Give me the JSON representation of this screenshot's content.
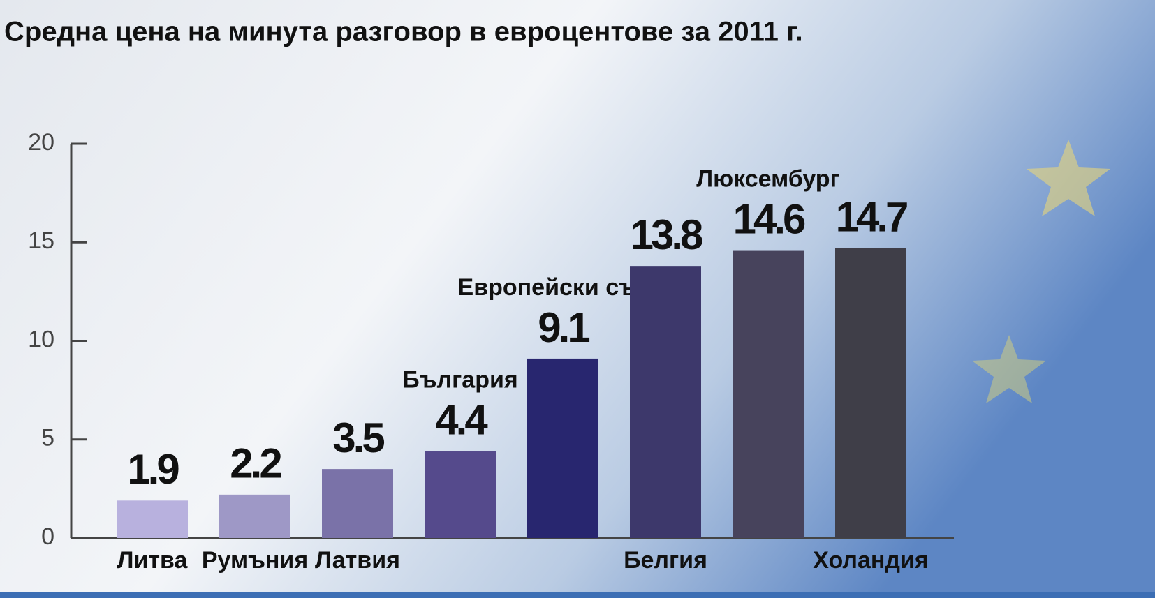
{
  "chart_data": {
    "type": "bar",
    "title": "Средна цена на минута разговор в евроцентове за 2011 г.",
    "categories": [
      "Литва",
      "Румъния",
      "Латвия",
      "България",
      "Европейски съюз",
      "Белгия",
      "Люксембург",
      "Холандия"
    ],
    "category_label_position": [
      "below",
      "below",
      "below",
      "above",
      "above",
      "below",
      "above",
      "below"
    ],
    "values": [
      1.9,
      2.2,
      3.5,
      4.4,
      9.1,
      13.8,
      14.6,
      14.7
    ],
    "colors": [
      "#b8b1de",
      "#9e98c6",
      "#7a72a8",
      "#554a8c",
      "#28266f",
      "#3d386b",
      "#47435c",
      "#3f3e48"
    ],
    "ylim": [
      0,
      20
    ],
    "yticks": [
      0,
      5,
      10,
      15,
      20
    ],
    "grid": false
  }
}
